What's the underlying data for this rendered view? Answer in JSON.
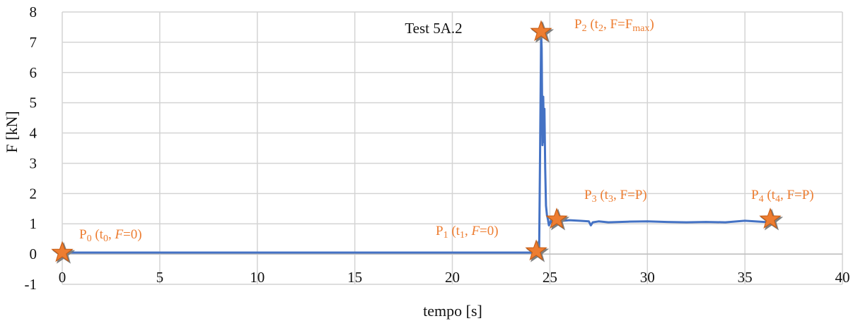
{
  "chart_data": {
    "type": "line",
    "title": "Test 5A.2",
    "xlabel": "tempo [s]",
    "ylabel": "F [kN]",
    "xlim": [
      0,
      40
    ],
    "ylim": [
      -1,
      8
    ],
    "xticks": [
      0,
      5,
      10,
      15,
      20,
      25,
      30,
      35,
      40
    ],
    "yticks": [
      -1,
      0,
      1,
      2,
      3,
      4,
      5,
      6,
      7,
      8
    ],
    "grid": true,
    "legend": "none",
    "colors": {
      "line": "#4472c4",
      "annotation": "#ed7d31",
      "marker": "#ed7d31",
      "marker_shadow": "#7f7f7f"
    },
    "series": [
      {
        "x": [
          0,
          5,
          10,
          15,
          20,
          24.0,
          24.3,
          24.45,
          24.5,
          24.55,
          24.58,
          24.62,
          24.66,
          24.7,
          24.72,
          24.76,
          24.8,
          24.85,
          24.9,
          24.95,
          25.0,
          25.05,
          25.1,
          25.2,
          25.4,
          25.7,
          26.0,
          26.5,
          27.0,
          27.1,
          27.2,
          27.5,
          28,
          29,
          30,
          31,
          32,
          33,
          34,
          35,
          35.5,
          36,
          36.3
        ],
        "y": [
          0.05,
          0.05,
          0.05,
          0.05,
          0.05,
          0.05,
          0.05,
          0.05,
          3.5,
          7.3,
          6.8,
          3.6,
          5.2,
          3.7,
          4.8,
          2.8,
          1.6,
          1.3,
          1.15,
          0.95,
          1.0,
          1.1,
          1.05,
          1.1,
          1.08,
          1.1,
          1.12,
          1.1,
          1.08,
          0.95,
          1.05,
          1.08,
          1.05,
          1.07,
          1.08,
          1.06,
          1.05,
          1.06,
          1.05,
          1.1,
          1.08,
          1.06,
          1.05
        ]
      }
    ],
    "annotations": [
      {
        "id": "p0",
        "x": 0,
        "y": 0.05,
        "label": {
          "base": "P",
          "sub": "0",
          "a": " (t",
          "asub": "0",
          "b": ", ",
          "bit": "F",
          "c": "=0)"
        }
      },
      {
        "id": "p1",
        "x": 24.3,
        "y": 0.1,
        "label": {
          "base": "P",
          "sub": "1",
          "a": " (t",
          "asub": "1",
          "b": ", ",
          "bit": "F",
          "c": "=0)"
        }
      },
      {
        "id": "p2",
        "x": 24.55,
        "y": 7.35,
        "label": {
          "base": "P",
          "sub": "2",
          "a": " (t",
          "asub": "2",
          "b": ", F=F",
          "bit": "",
          "c": "",
          "csub": "max",
          "d": ")"
        }
      },
      {
        "id": "p3",
        "x": 25.35,
        "y": 1.15,
        "label": {
          "base": "P",
          "sub": "3",
          "a": " (t",
          "asub": "3",
          "b": ", F=P)",
          "bit": "",
          "c": ""
        }
      },
      {
        "id": "p4",
        "x": 36.3,
        "y": 1.15,
        "label": {
          "base": "P",
          "sub": "4",
          "a": " (t",
          "asub": "4",
          "b": ", F=P)",
          "bit": "",
          "c": ""
        }
      }
    ]
  }
}
